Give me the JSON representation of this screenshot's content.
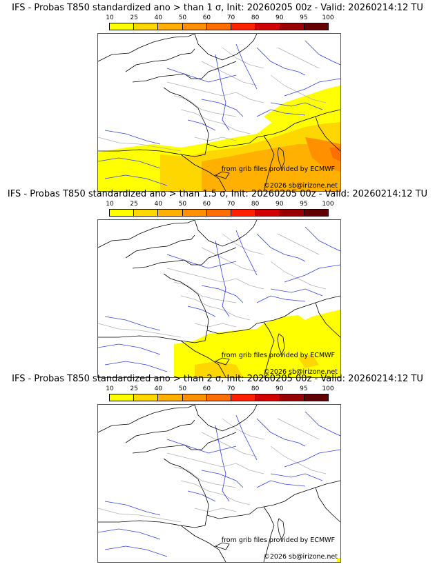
{
  "colorbar": {
    "ticks": [
      "10",
      "25",
      "40",
      "50",
      "60",
      "70",
      "80",
      "90",
      "95",
      "100"
    ],
    "colors": [
      "#ffff00",
      "#ffd700",
      "#ffb000",
      "#ff9000",
      "#ff6e00",
      "#ff2000",
      "#d00000",
      "#980000",
      "#600000"
    ]
  },
  "panels": [
    {
      "title": "IFS - Probas T850  standardized ano > than 1 σ, Init: 20260205 00z - Valid: 20260214:12 TU",
      "threshold": "1"
    },
    {
      "title": "IFS - Probas T850  standardized ano > than 1.5 σ, Init: 20260205 00z - Valid: 20260214:12 TU",
      "threshold": "1.5"
    },
    {
      "title": "IFS - Probas T850  standardized ano > than 2 σ, Init: 20260205 00z - Valid: 20260214:12 TU",
      "threshold": "2"
    }
  ],
  "credits": {
    "source": "from grib files provided by ECMWF",
    "copyright": "©2026 sb@irizone.net"
  },
  "colors": {
    "coast": "#000000",
    "rivers": "#3344dd",
    "borders": "#b0b0b0"
  }
}
